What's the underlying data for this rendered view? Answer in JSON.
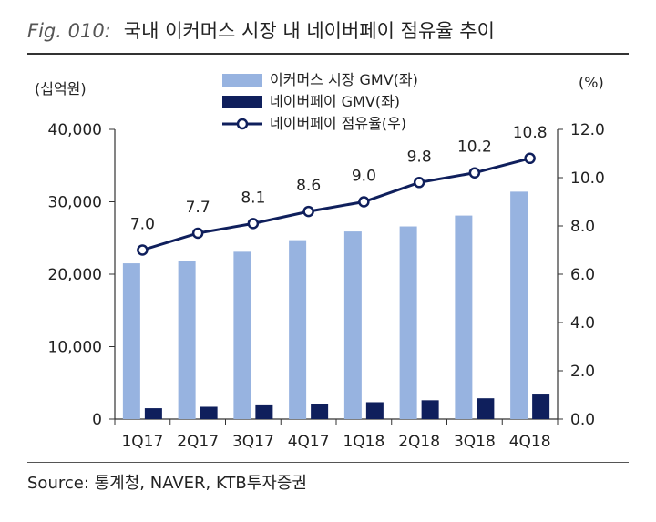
{
  "header": {
    "fig_label": "Fig. 010:",
    "title": "국내 이커머스 시장 내 네이버페이 점유율 추이"
  },
  "footer": {
    "source": "Source: 통계청, NAVER, KTB투자증권"
  },
  "colors": {
    "ecommerce_bar": "#97b3e0",
    "naverpay_bar": "#0f1f5c",
    "share_line": "#0f1f5c",
    "axis": "#333333",
    "text": "#222222"
  },
  "chart_data": {
    "type": "bar",
    "categories": [
      "1Q17",
      "2Q17",
      "3Q17",
      "4Q17",
      "1Q18",
      "2Q18",
      "3Q18",
      "4Q18"
    ],
    "y_left": {
      "unit_label": "(십억원)",
      "ylim": [
        0,
        40000
      ],
      "ticks": [
        "0",
        "10,000",
        "20,000",
        "30,000",
        "40,000"
      ]
    },
    "y_right": {
      "unit_label": "(%)",
      "ylim": [
        0,
        12
      ],
      "ticks": [
        "0.0",
        "2.0",
        "4.0",
        "6.0",
        "8.0",
        "10.0",
        "12.0"
      ]
    },
    "series": [
      {
        "name": "이커머스 시장 GMV(좌)",
        "type": "bar",
        "axis": "left",
        "values": [
          21500,
          21800,
          23100,
          24700,
          25900,
          26600,
          28100,
          31400
        ]
      },
      {
        "name": "네이버페이 GMV(좌)",
        "type": "bar",
        "axis": "left",
        "values": [
          1500,
          1700,
          1900,
          2100,
          2330,
          2600,
          2870,
          3390
        ]
      },
      {
        "name": "네이버페이 점유율(우)",
        "type": "line",
        "axis": "right",
        "values": [
          7.0,
          7.7,
          8.1,
          8.6,
          9.0,
          9.8,
          10.2,
          10.8
        ],
        "labels": [
          "7.0",
          "7.7",
          "8.1",
          "8.6",
          "9.0",
          "9.8",
          "10.2",
          "10.8"
        ]
      }
    ],
    "legend": "top-center",
    "grid": false
  }
}
